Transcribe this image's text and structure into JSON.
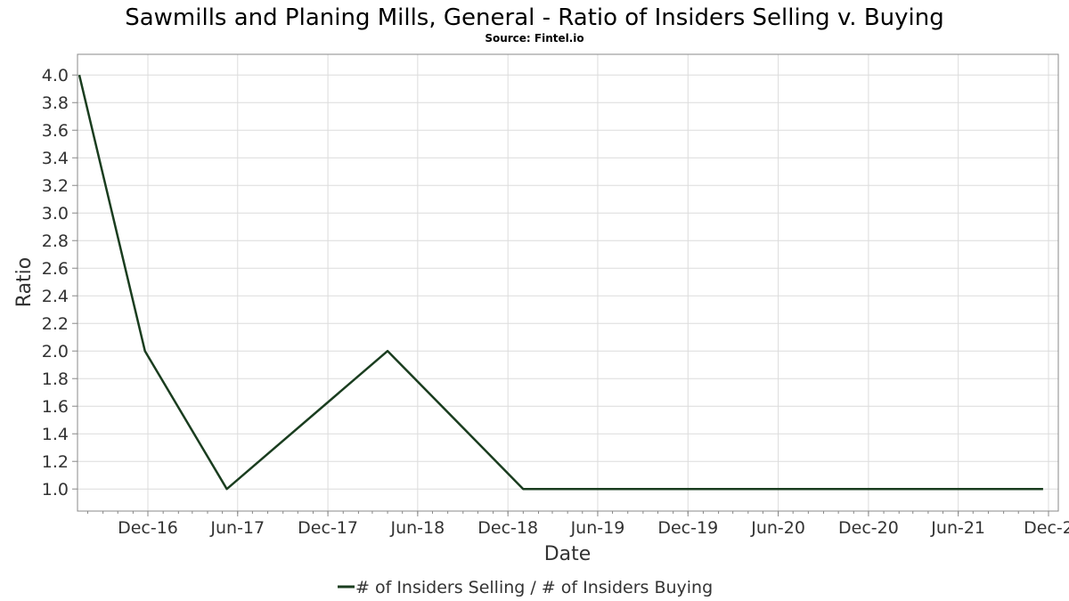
{
  "chart_data": {
    "type": "line",
    "title": "Sawmills and Planing Mills, General - Ratio of Insiders Selling v. Buying",
    "subtitle": "Source: Fintel.io",
    "xlabel": "Date",
    "ylabel": "Ratio",
    "x_ticks": [
      "Dec-16",
      "Jun-17",
      "Dec-17",
      "Jun-18",
      "Dec-18",
      "Jun-19",
      "Dec-19",
      "Jun-20",
      "Dec-20",
      "Jun-21",
      "Dec-2"
    ],
    "y_ticks": [
      "1.0",
      "1.2",
      "1.4",
      "1.6",
      "1.8",
      "2.0",
      "2.2",
      "2.4",
      "2.6",
      "2.8",
      "3.0",
      "3.2",
      "3.4",
      "3.6",
      "3.8",
      "4.0"
    ],
    "ylim": [
      0.84,
      4.15
    ],
    "grid": true,
    "legend_position": "bottom-center",
    "series": [
      {
        "name": "# of Insiders Selling / # of Insiders Buying",
        "color": "#1a3d1f",
        "points": [
          {
            "x": "2016-07-15",
            "y": 4.0
          },
          {
            "x": "2016-11-25",
            "y": 2.0
          },
          {
            "x": "2017-05-10",
            "y": 1.0
          },
          {
            "x": "2018-04-01",
            "y": 2.0
          },
          {
            "x": "2019-01-01",
            "y": 1.0
          },
          {
            "x": "2021-11-20",
            "y": 1.0
          }
        ]
      }
    ]
  }
}
